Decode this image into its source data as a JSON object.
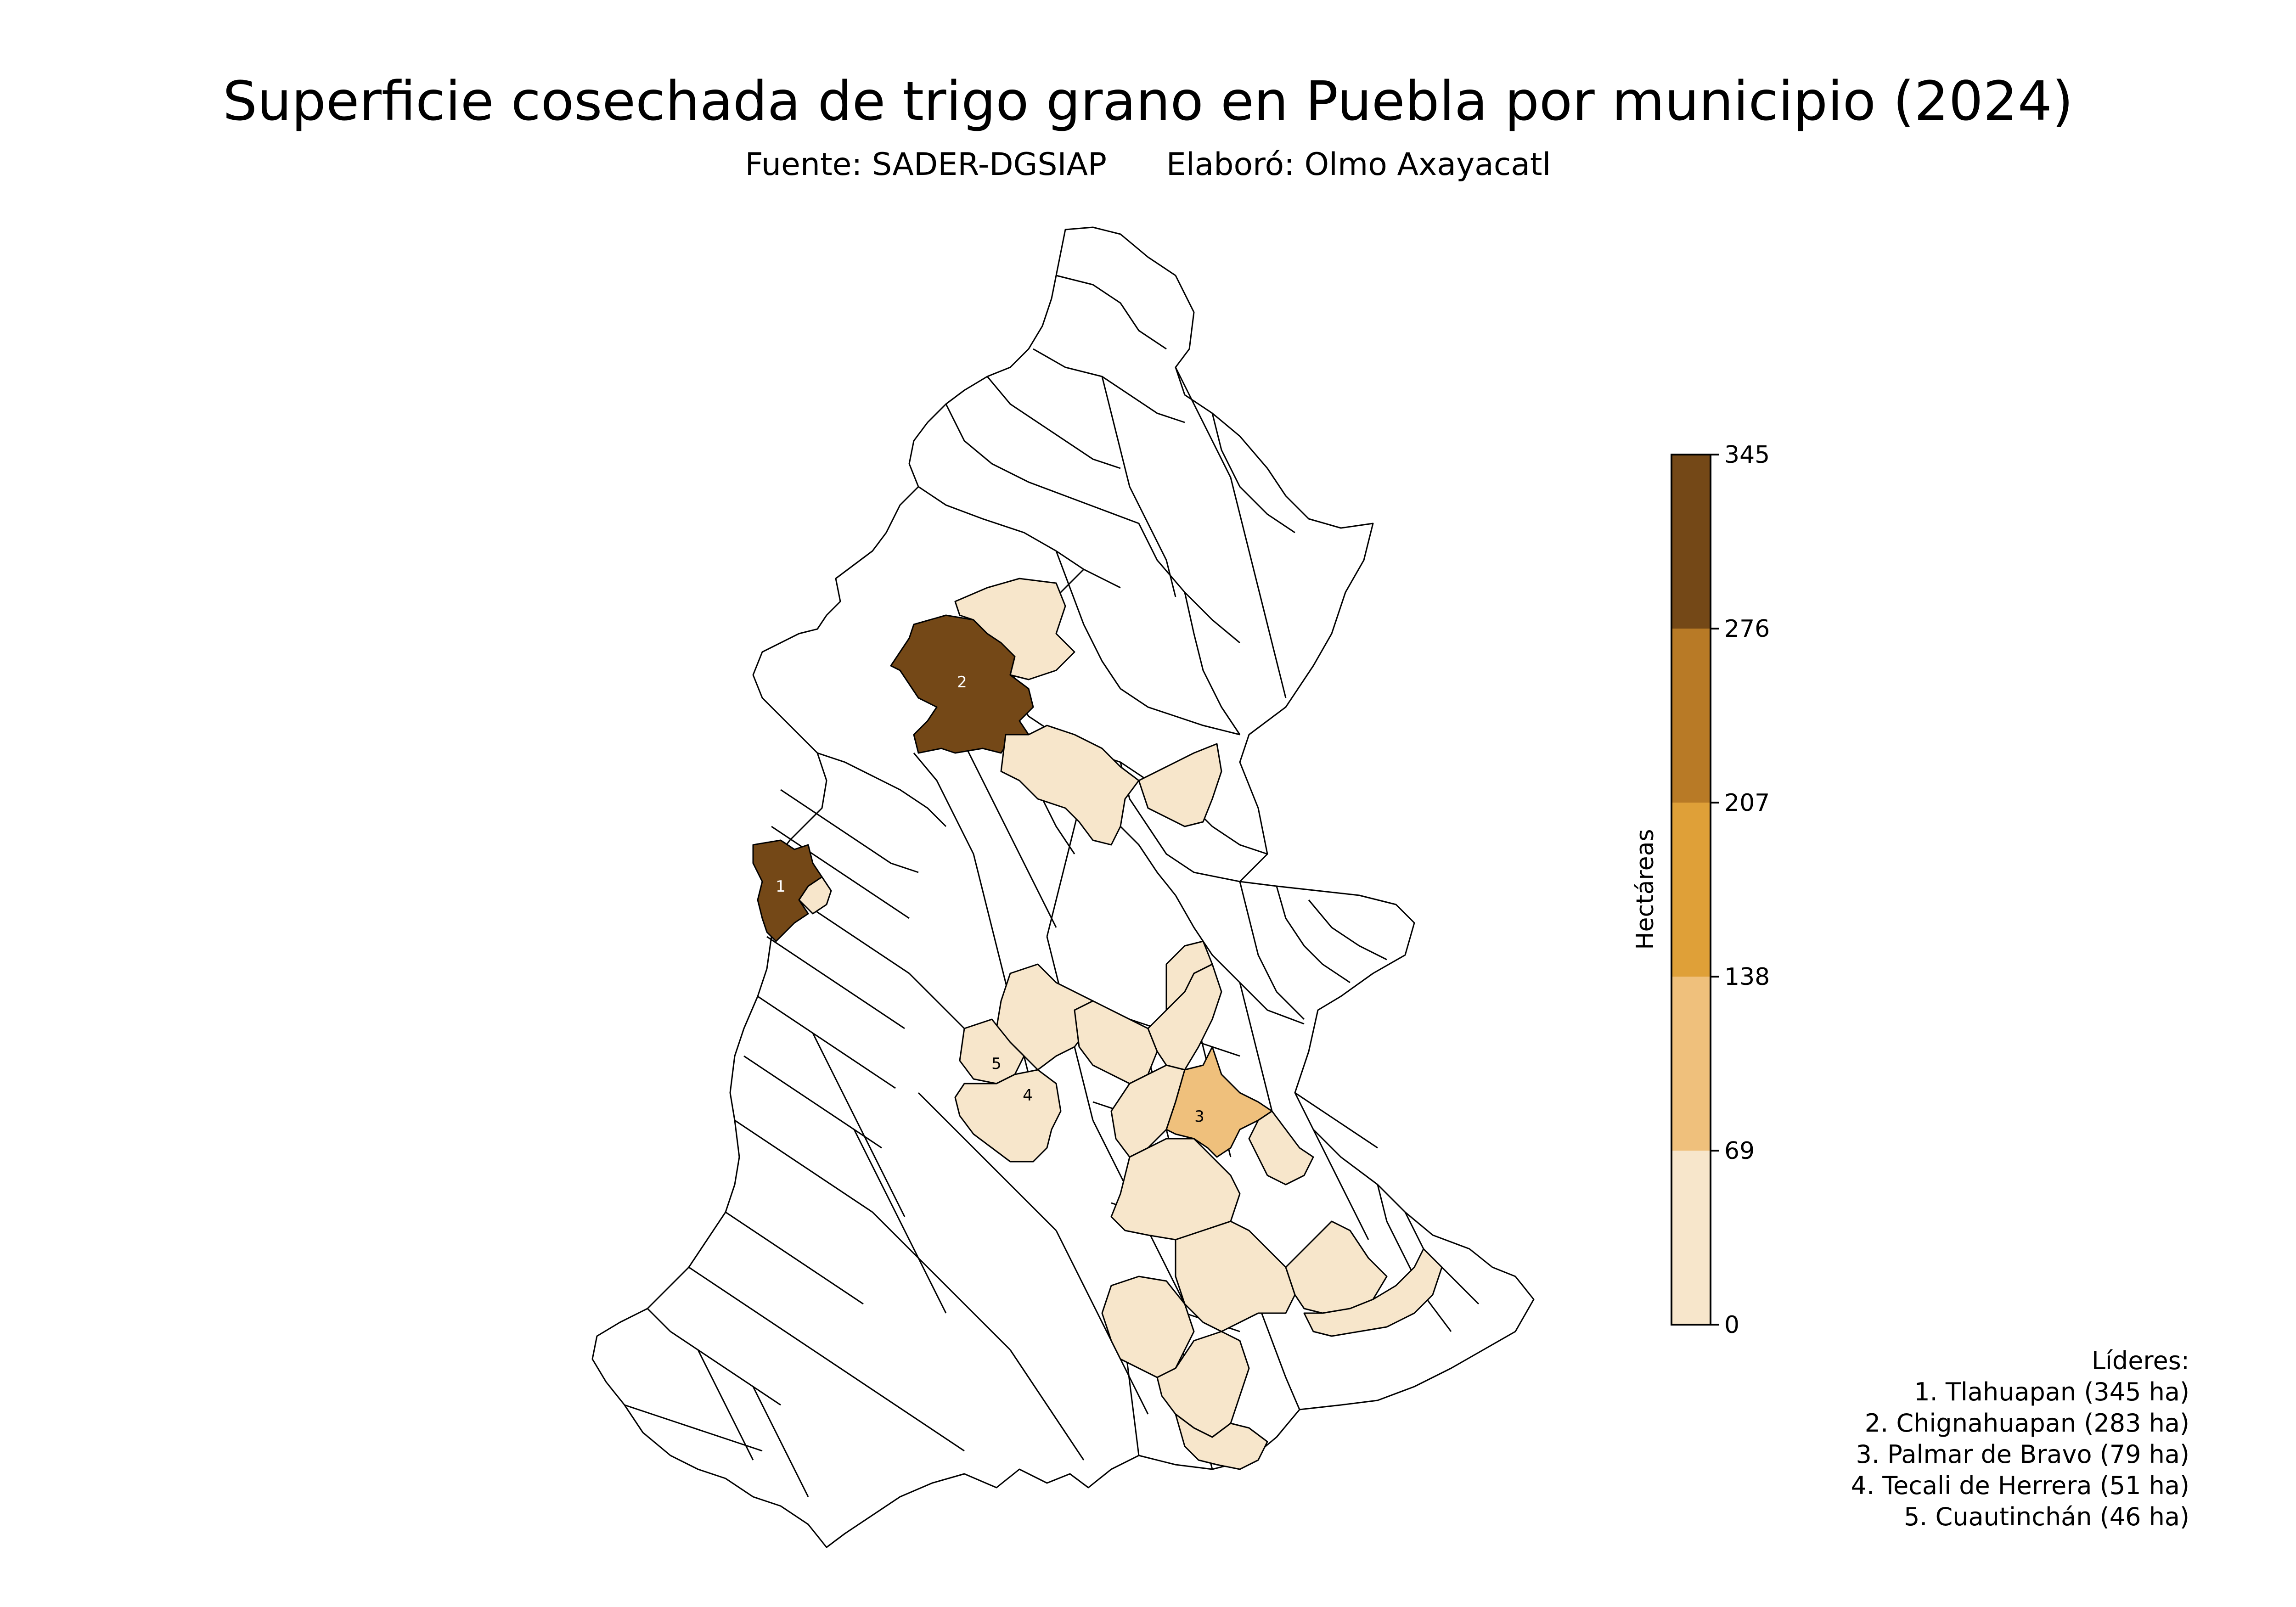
{
  "title": "Superficie cosechada de trigo grano en Puebla por municipio (2024)",
  "subtitle": "Fuente: SADER-DGSIAP      Elaboró: Olmo Axayacatl",
  "colorbar": {
    "label": "Hectáreas",
    "ticks": [
      "0",
      "69",
      "138",
      "207",
      "276",
      "345"
    ],
    "bins": [
      {
        "min": 0,
        "max": 69,
        "color": "#f7e6cb"
      },
      {
        "min": 69,
        "max": 138,
        "color": "#efc07c"
      },
      {
        "min": 138,
        "max": 207,
        "color": "#dfa038"
      },
      {
        "min": 207,
        "max": 276,
        "color": "#b87a26"
      },
      {
        "min": 276,
        "max": 345,
        "color": "#744817"
      }
    ],
    "none_color": "#ffffff"
  },
  "map_labels": [
    {
      "rank": "1",
      "name": "Tlahuapan",
      "value": 345
    },
    {
      "rank": "2",
      "name": "Chignahuapan",
      "value": 283
    },
    {
      "rank": "3",
      "name": "Palmar de Bravo",
      "value": 79
    },
    {
      "rank": "4",
      "name": "Tecali de Herrera",
      "value": 51
    },
    {
      "rank": "5",
      "name": "Cuautinchán",
      "value": 46
    }
  ],
  "leaders": {
    "heading": "Líderes:",
    "items": [
      "1. Tlahuapan (345 ha)",
      "2. Chignahuapan (283 ha)",
      "3. Palmar de Bravo (79 ha)",
      "4. Tecali de Herrera (51 ha)",
      "5. Cuautinchán (46 ha)"
    ]
  }
}
